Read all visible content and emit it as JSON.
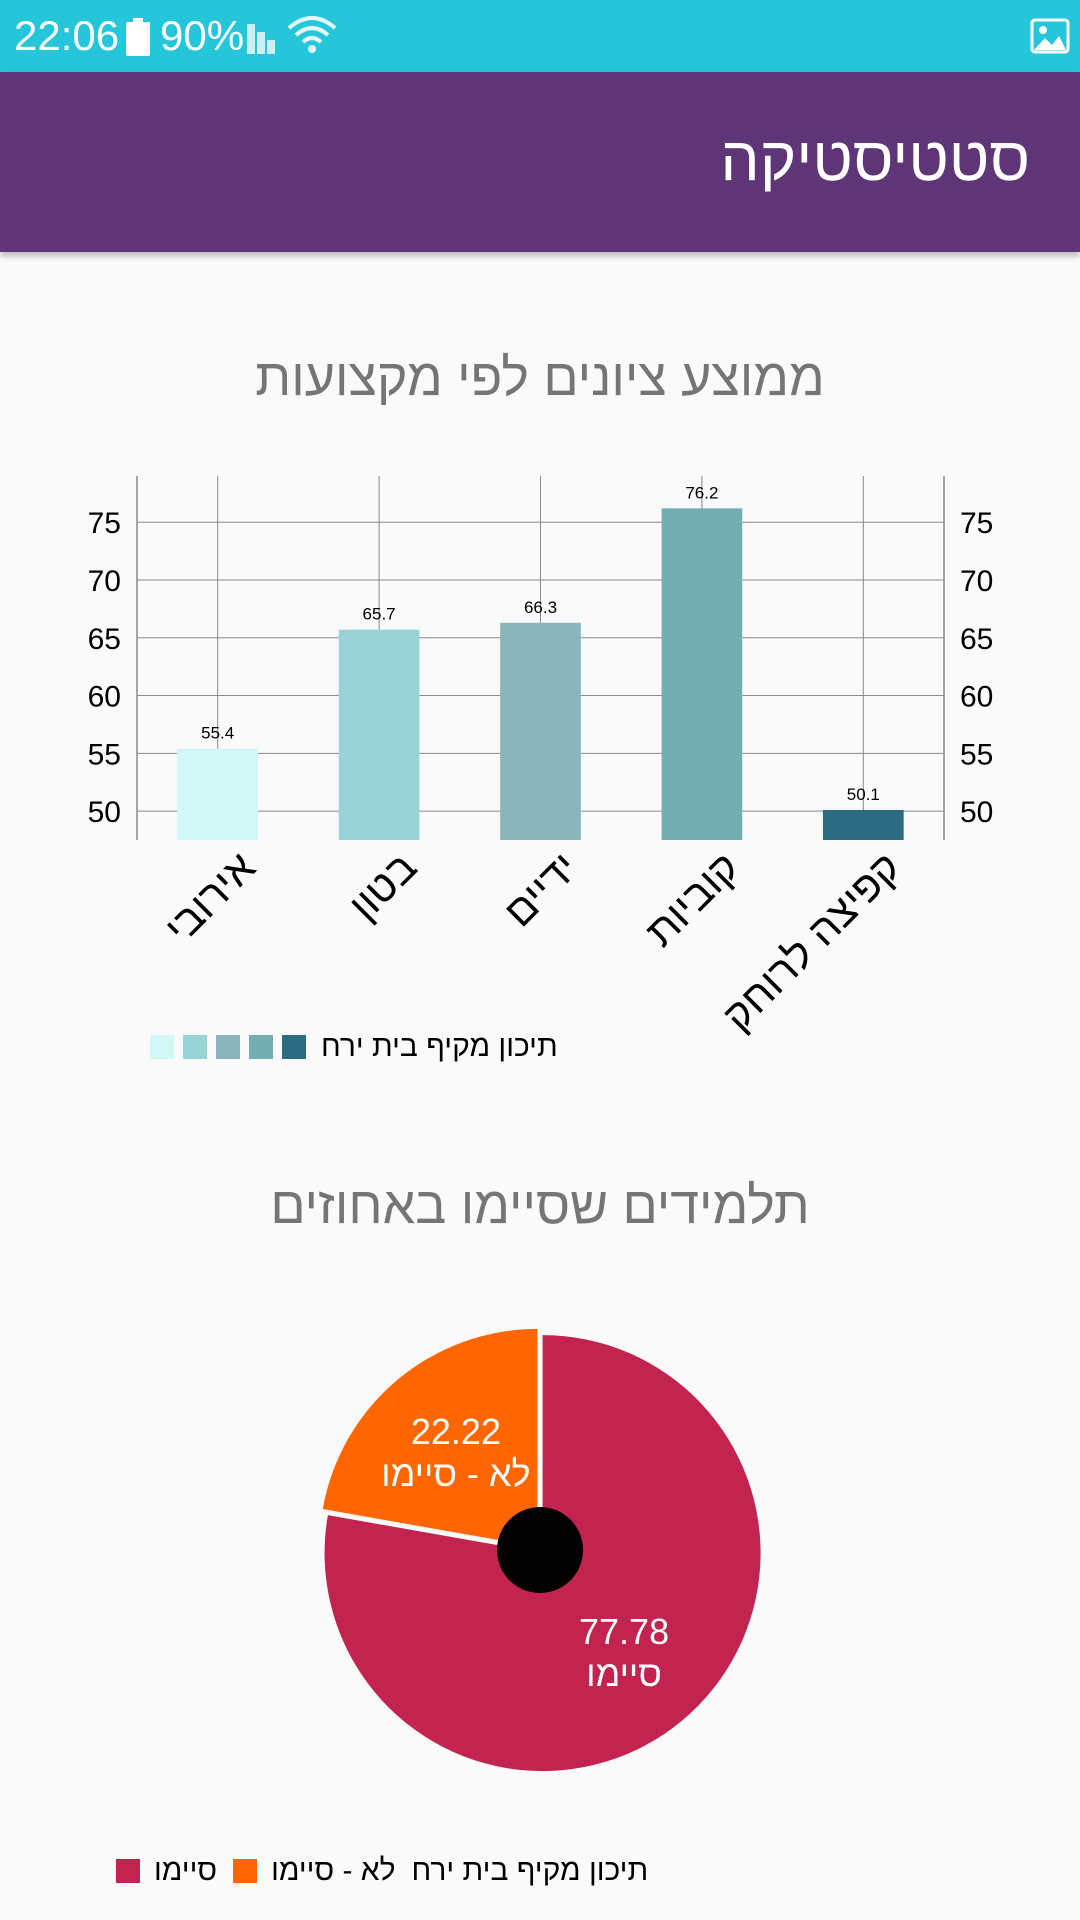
{
  "status_bar": {
    "time": "22:06",
    "battery": "90%",
    "icons": [
      "battery-icon",
      "signal-icon",
      "wifi-icon",
      "image-icon"
    ]
  },
  "app_bar": {
    "title": "סטטיסטיקה"
  },
  "chart_data": [
    {
      "type": "bar",
      "title": "ממוצע ציונים לפי מקצועות",
      "categories": [
        "אירובי",
        "בטון",
        "ידיים",
        "קוביות",
        "קפיצה לרוחק"
      ],
      "series": [
        {
          "name": "תיכון מקיף בית ירח",
          "values": [
            55.4,
            65.7,
            66.3,
            76.2,
            50.1
          ]
        }
      ],
      "bar_colors": [
        "#d1f7f6",
        "#98d4d6",
        "#8ab5bb",
        "#75aeb0",
        "#2b6c80"
      ],
      "ylim": [
        47.5,
        79
      ],
      "yticks": [
        50,
        55,
        60,
        65,
        70,
        75
      ],
      "grid": true,
      "right_axis": true,
      "legend_position": "bottom-left"
    },
    {
      "type": "pie",
      "title": "תלמידים שסיימו באחוזים",
      "slices": [
        {
          "label": "סיימו",
          "value": 77.78,
          "color": "#c2234f"
        },
        {
          "label": "לא - סיימו",
          "value": 22.22,
          "color": "#ff6600"
        }
      ],
      "legend_group": "תיכון מקיף בית ירח",
      "legend_position": "bottom-left",
      "hole_color": "#000000"
    }
  ]
}
